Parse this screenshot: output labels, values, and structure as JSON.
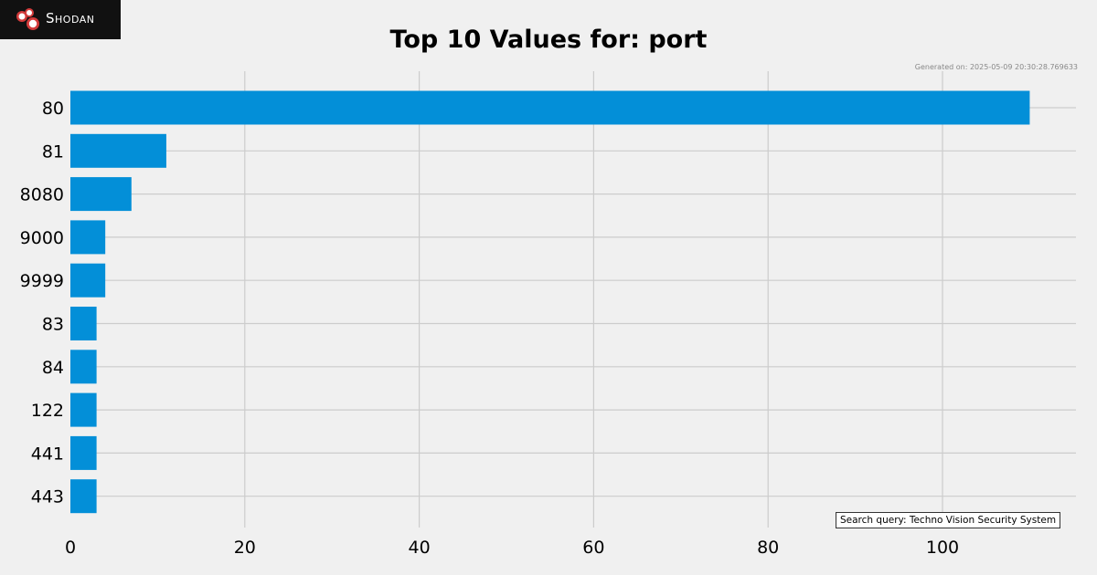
{
  "header": {
    "logo_text": "Shodan",
    "title": "Top 10 Values for: port",
    "generated": "Generated on: 2025-05-09 20:30:28.769633"
  },
  "footer": {
    "query": "Search query: Techno Vision Security System"
  },
  "colors": {
    "bar": "#038fd8",
    "grid": "#cccccc",
    "background": "#f0f0f0"
  },
  "chart_data": {
    "type": "bar",
    "orientation": "horizontal",
    "title": "Top 10 Values for: port",
    "xlabel": "",
    "ylabel": "",
    "categories": [
      "80",
      "81",
      "8080",
      "9000",
      "9999",
      "83",
      "84",
      "122",
      "441",
      "443"
    ],
    "values": [
      110,
      11,
      7,
      4,
      4,
      3,
      3,
      3,
      3,
      3
    ],
    "xlim": [
      0,
      115
    ],
    "xticks": [
      0,
      20,
      40,
      60,
      80,
      100
    ],
    "grid": true,
    "legend": "none"
  }
}
